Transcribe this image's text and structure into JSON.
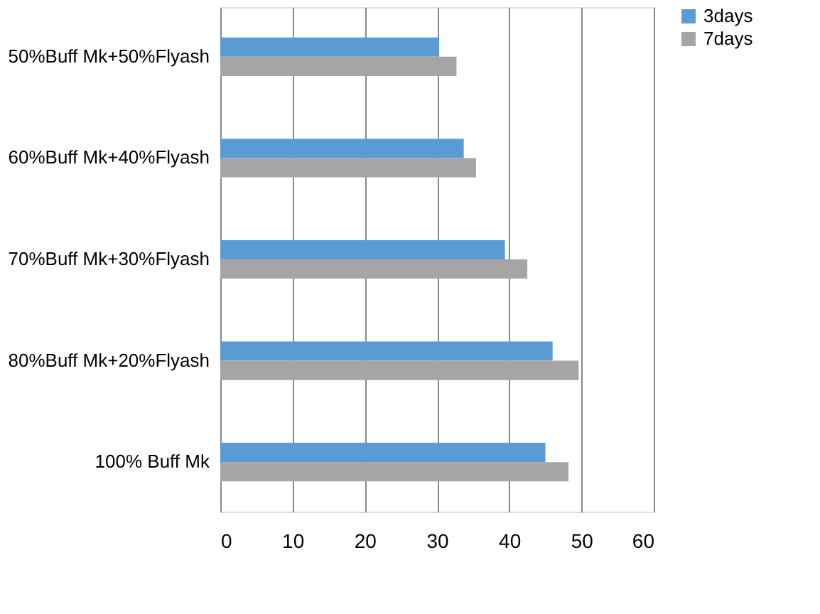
{
  "chart_data": {
    "type": "bar",
    "orientation": "horizontal",
    "categories": [
      "50%Buff Mk+50%Flyash",
      "60%Buff Mk+40%Flyash",
      "70%Buff Mk+30%Flyash",
      "80%Buff Mk+20%Flyash",
      "100% Buff Mk"
    ],
    "series": [
      {
        "name": "3days",
        "color": "#5b9bd5",
        "values": [
          30.3,
          33.7,
          39.4,
          46.0,
          45.0
        ]
      },
      {
        "name": "7days",
        "color": "#a5a5a5",
        "values": [
          32.7,
          35.4,
          42.5,
          49.6,
          48.2
        ]
      }
    ],
    "xlim": [
      0,
      60
    ],
    "xticks": [
      0,
      10,
      20,
      30,
      40,
      50,
      60
    ],
    "grid": "x",
    "legend": "right"
  }
}
